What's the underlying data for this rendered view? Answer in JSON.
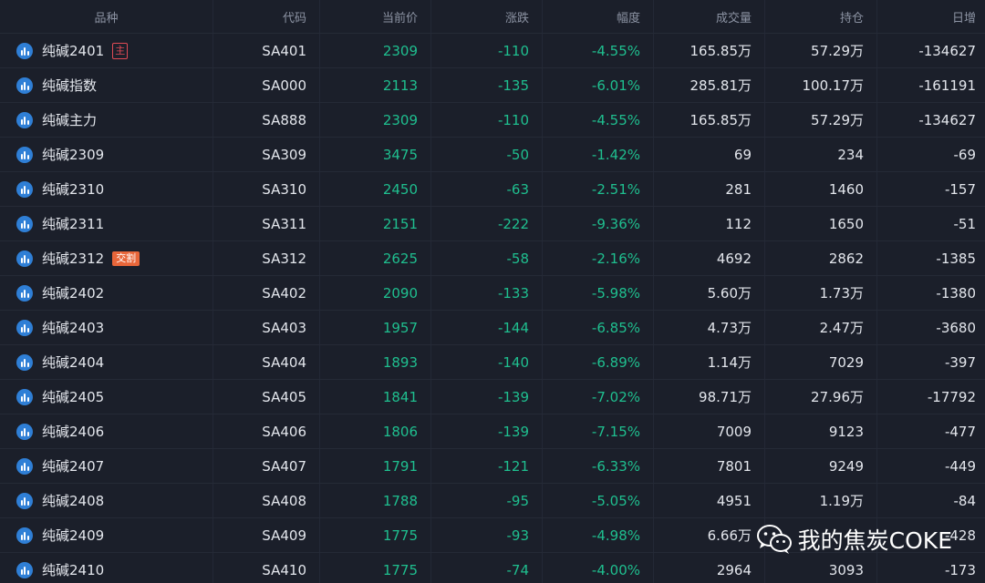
{
  "columns": [
    "品种",
    "代码",
    "当前价",
    "涨跌",
    "幅度",
    "成交量",
    "持仓",
    "日增"
  ],
  "rows": [
    {
      "name": "纯碱2401",
      "badge": "主",
      "badge_type": "main",
      "code": "SA401",
      "price": "2309",
      "change": "-110",
      "pct": "-4.55%",
      "volume": "165.85万",
      "oi": "57.29万",
      "daily": "-134627"
    },
    {
      "name": "纯碱指数",
      "badge": "",
      "badge_type": "",
      "code": "SA000",
      "price": "2113",
      "change": "-135",
      "pct": "-6.01%",
      "volume": "285.81万",
      "oi": "100.17万",
      "daily": "-161191"
    },
    {
      "name": "纯碱主力",
      "badge": "",
      "badge_type": "",
      "code": "SA888",
      "price": "2309",
      "change": "-110",
      "pct": "-4.55%",
      "volume": "165.85万",
      "oi": "57.29万",
      "daily": "-134627"
    },
    {
      "name": "纯碱2309",
      "badge": "",
      "badge_type": "",
      "code": "SA309",
      "price": "3475",
      "change": "-50",
      "pct": "-1.42%",
      "volume": "69",
      "oi": "234",
      "daily": "-69"
    },
    {
      "name": "纯碱2310",
      "badge": "",
      "badge_type": "",
      "code": "SA310",
      "price": "2450",
      "change": "-63",
      "pct": "-2.51%",
      "volume": "281",
      "oi": "1460",
      "daily": "-157"
    },
    {
      "name": "纯碱2311",
      "badge": "",
      "badge_type": "",
      "code": "SA311",
      "price": "2151",
      "change": "-222",
      "pct": "-9.36%",
      "volume": "112",
      "oi": "1650",
      "daily": "-51"
    },
    {
      "name": "纯碱2312",
      "badge": "交割",
      "badge_type": "delivery",
      "code": "SA312",
      "price": "2625",
      "change": "-58",
      "pct": "-2.16%",
      "volume": "4692",
      "oi": "2862",
      "daily": "-1385"
    },
    {
      "name": "纯碱2402",
      "badge": "",
      "badge_type": "",
      "code": "SA402",
      "price": "2090",
      "change": "-133",
      "pct": "-5.98%",
      "volume": "5.60万",
      "oi": "1.73万",
      "daily": "-1380"
    },
    {
      "name": "纯碱2403",
      "badge": "",
      "badge_type": "",
      "code": "SA403",
      "price": "1957",
      "change": "-144",
      "pct": "-6.85%",
      "volume": "4.73万",
      "oi": "2.47万",
      "daily": "-3680"
    },
    {
      "name": "纯碱2404",
      "badge": "",
      "badge_type": "",
      "code": "SA404",
      "price": "1893",
      "change": "-140",
      "pct": "-6.89%",
      "volume": "1.14万",
      "oi": "7029",
      "daily": "-397"
    },
    {
      "name": "纯碱2405",
      "badge": "",
      "badge_type": "",
      "code": "SA405",
      "price": "1841",
      "change": "-139",
      "pct": "-7.02%",
      "volume": "98.71万",
      "oi": "27.96万",
      "daily": "-17792"
    },
    {
      "name": "纯碱2406",
      "badge": "",
      "badge_type": "",
      "code": "SA406",
      "price": "1806",
      "change": "-139",
      "pct": "-7.15%",
      "volume": "7009",
      "oi": "9123",
      "daily": "-477"
    },
    {
      "name": "纯碱2407",
      "badge": "",
      "badge_type": "",
      "code": "SA407",
      "price": "1791",
      "change": "-121",
      "pct": "-6.33%",
      "volume": "7801",
      "oi": "9249",
      "daily": "-449"
    },
    {
      "name": "纯碱2408",
      "badge": "",
      "badge_type": "",
      "code": "SA408",
      "price": "1788",
      "change": "-95",
      "pct": "-5.05%",
      "volume": "4951",
      "oi": "1.19万",
      "daily": "-84"
    },
    {
      "name": "纯碱2409",
      "badge": "",
      "badge_type": "",
      "code": "SA409",
      "price": "1775",
      "change": "-93",
      "pct": "-4.98%",
      "volume": "6.66万",
      "oi": "",
      "daily": "-428"
    },
    {
      "name": "纯碱2410",
      "badge": "",
      "badge_type": "",
      "code": "SA410",
      "price": "1775",
      "change": "-74",
      "pct": "-4.00%",
      "volume": "2964",
      "oi": "3093",
      "daily": "-173"
    }
  ],
  "watermark": {
    "text": "我的焦炭COKE",
    "icon": "wechat-icon"
  },
  "colors": {
    "background": "#1b1f2a",
    "down": "#1fbf8f",
    "badge_main": "#e04b55",
    "badge_delivery": "#e8663a",
    "row_icon": "#2f7fd6"
  }
}
